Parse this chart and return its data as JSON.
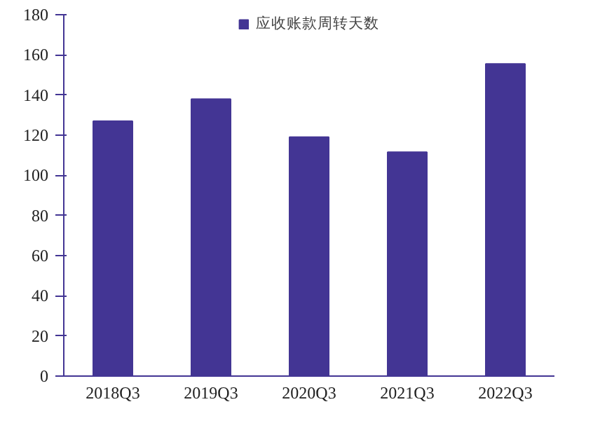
{
  "chart_data": {
    "type": "bar",
    "categories": [
      "2018Q3",
      "2019Q3",
      "2020Q3",
      "2021Q3",
      "2022Q3"
    ],
    "series": [
      {
        "name": "应收账款周转天数",
        "color": "#433594",
        "values": [
          127,
          138,
          119,
          111.5,
          155.5
        ]
      }
    ],
    "ylim": [
      0,
      180
    ],
    "yticks": [
      0,
      20,
      40,
      60,
      80,
      100,
      120,
      140,
      160,
      180
    ],
    "grid": false,
    "legend": "top"
  }
}
